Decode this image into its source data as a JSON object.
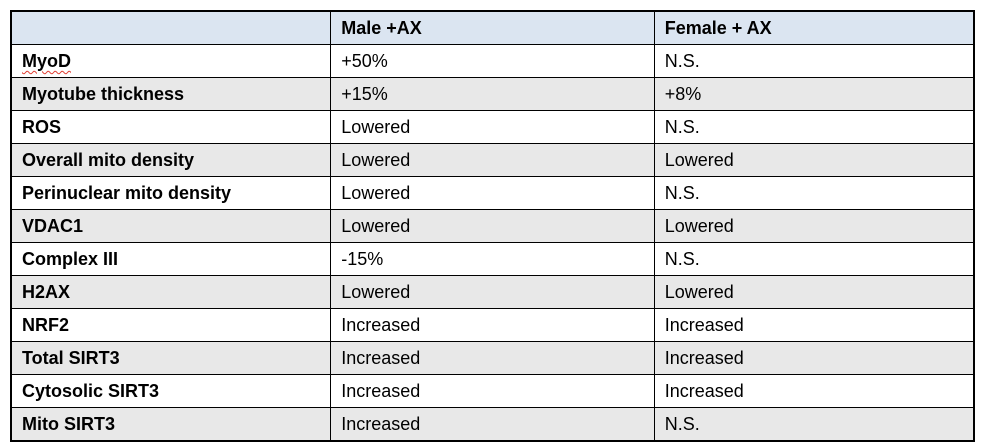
{
  "accent_colors": {
    "header_bg": "#dbe5f1",
    "shaded_row_bg": "#e8e8e8",
    "border": "#000000",
    "spellcheck_underline": "#e03c31"
  },
  "table": {
    "headers": {
      "label": "",
      "male": "Male +AX",
      "female": "Female + AX"
    },
    "rows": [
      {
        "label": "MyoD",
        "male": "+50%",
        "female": "N.S."
      },
      {
        "label": "Myotube thickness",
        "male": "+15%",
        "female": "+8%"
      },
      {
        "label": "ROS",
        "male": "Lowered",
        "female": "N.S."
      },
      {
        "label": "Overall mito density",
        "male": "Lowered",
        "female": "Lowered"
      },
      {
        "label": "Perinuclear mito density",
        "male": "Lowered",
        "female": "N.S."
      },
      {
        "label": "VDAC1",
        "male": "Lowered",
        "female": "Lowered"
      },
      {
        "label": "Complex III",
        "male": "-15%",
        "female": "N.S."
      },
      {
        "label": "H2AX",
        "male": "Lowered",
        "female": "Lowered"
      },
      {
        "label": "NRF2",
        "male": "Increased",
        "female": "Increased"
      },
      {
        "label": "Total SIRT3",
        "male": "Increased",
        "female": "Increased"
      },
      {
        "label": "Cytosolic SIRT3",
        "male": "Increased",
        "female": "Increased"
      },
      {
        "label": "Mito SIRT3",
        "male": "Increased",
        "female": "N.S."
      }
    ]
  }
}
